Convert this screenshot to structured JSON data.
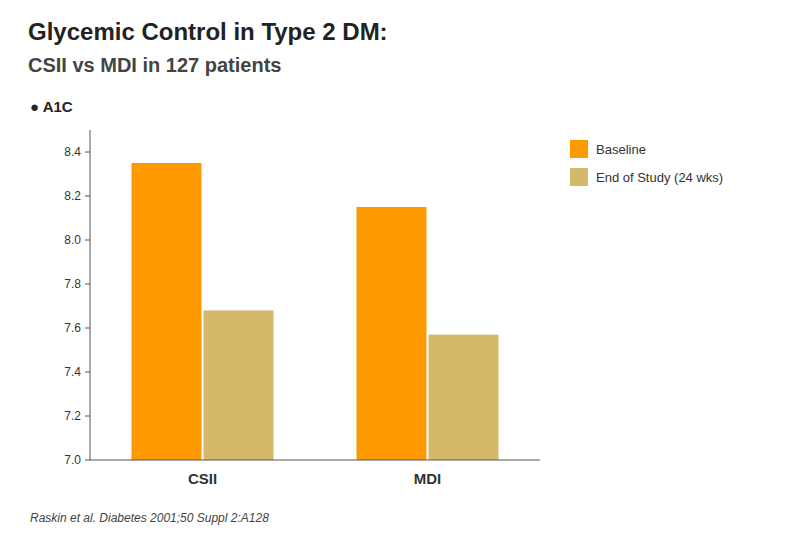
{
  "chart_data": {
    "type": "bar",
    "title": "Glycemic Control in Type 2 DM:",
    "subtitle": "CSII vs MDI in 127 patients",
    "categories": [
      "CSII",
      "MDI"
    ],
    "series": [
      {
        "name": "Baseline",
        "color": "#ff9900",
        "values": [
          8.35,
          8.15
        ]
      },
      {
        "name": "End of Study (24 wks)",
        "color": "#d4b96a",
        "values": [
          7.68,
          7.57
        ]
      }
    ],
    "ylim": [
      7.0,
      8.5
    ],
    "yticks": [
      {
        "value": 7.0,
        "label": "7.0"
      },
      7.2,
      7.4,
      7.6,
      7.8,
      {
        "value": 8.0,
        "label": "8.0"
      },
      8.2,
      8.4
    ],
    "grid": false,
    "legend": "right",
    "annotations": [
      "● A1C",
      "Raskin et al. Diabetes 2001;50 Suppl 2:A128"
    ]
  }
}
